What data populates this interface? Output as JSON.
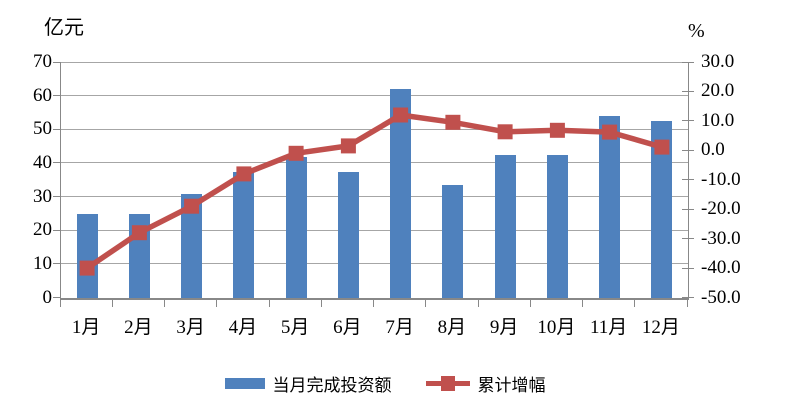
{
  "chart_data": {
    "type": "bar+line combo",
    "categories": [
      "1月",
      "2月",
      "3月",
      "4月",
      "5月",
      "6月",
      "7月",
      "8月",
      "9月",
      "10月",
      "11月",
      "12月"
    ],
    "series": [
      {
        "name": "当月完成投资额",
        "type": "bar",
        "axis": "left",
        "color": "#4F81BD",
        "values": [
          25,
          25,
          31,
          37.5,
          42,
          37.5,
          62,
          33.5,
          42.5,
          42.5,
          54,
          52.5
        ]
      },
      {
        "name": "累计增幅",
        "type": "line",
        "axis": "right",
        "color": "#C0504D",
        "values": [
          -40,
          -28,
          -19,
          -8,
          -1,
          1.5,
          12,
          9.5,
          6.3,
          6.8,
          6.2,
          1.1
        ]
      }
    ],
    "left_axis": {
      "title": "亿元",
      "min": 0,
      "max": 70,
      "step": 10,
      "labels": [
        "70",
        "60",
        "50",
        "40",
        "30",
        "20",
        "10",
        "0"
      ]
    },
    "right_axis": {
      "title": "%",
      "min": -50,
      "max": 30,
      "step": 10,
      "labels": [
        "30.0",
        "20.0",
        "10.0",
        "0.0",
        "-10.0",
        "-20.0",
        "-30.0",
        "-40.0",
        "-50.0"
      ]
    },
    "grid": true,
    "legend_position": "bottom",
    "colors": {
      "grid": "#a6a6a6",
      "axis": "#888888",
      "bar": "#4F81BD",
      "line": "#C0504D"
    }
  }
}
